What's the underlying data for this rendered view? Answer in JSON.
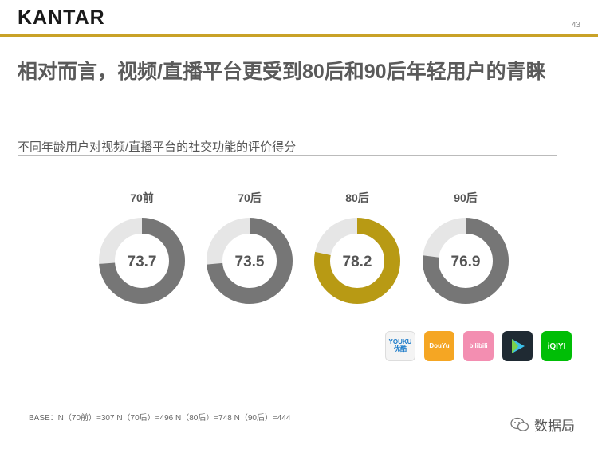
{
  "header": {
    "logo_text": "KANTAR",
    "page_number": "43"
  },
  "title": "相对而言，视频/直播平台更受到80后和90后年轻用户的青睐",
  "colors": {
    "gold": "#c9a227",
    "ring_highlight": "#b89a14",
    "ring_dark": "#767676",
    "ring_track": "#e6e6e6"
  },
  "chart_data": {
    "type": "pie",
    "title": "不同年龄用户对视频/直播平台的社交功能的评价得分",
    "categories": [
      "70前",
      "70后",
      "80后",
      "90后"
    ],
    "values": [
      73.7,
      73.5,
      78.2,
      76.9
    ],
    "labels": [
      "73.7",
      "73.5",
      "78.2",
      "76.9"
    ],
    "highlight": "80后",
    "max": 100
  },
  "app_logos": [
    {
      "name": "youku-logo",
      "text": "YOUKU\n优酷"
    },
    {
      "name": "douyu-logo",
      "text": "DouYu"
    },
    {
      "name": "bilibili-logo",
      "text": "bilibili"
    },
    {
      "name": "tencent-video-logo",
      "text": ""
    },
    {
      "name": "iqiyi-logo",
      "text": "iQIYI"
    }
  ],
  "footnote": "BASE：N（70前）=307    N（70后）=496    N（80后）=748    N（90后）=444",
  "watermark": {
    "text": "数据局"
  }
}
